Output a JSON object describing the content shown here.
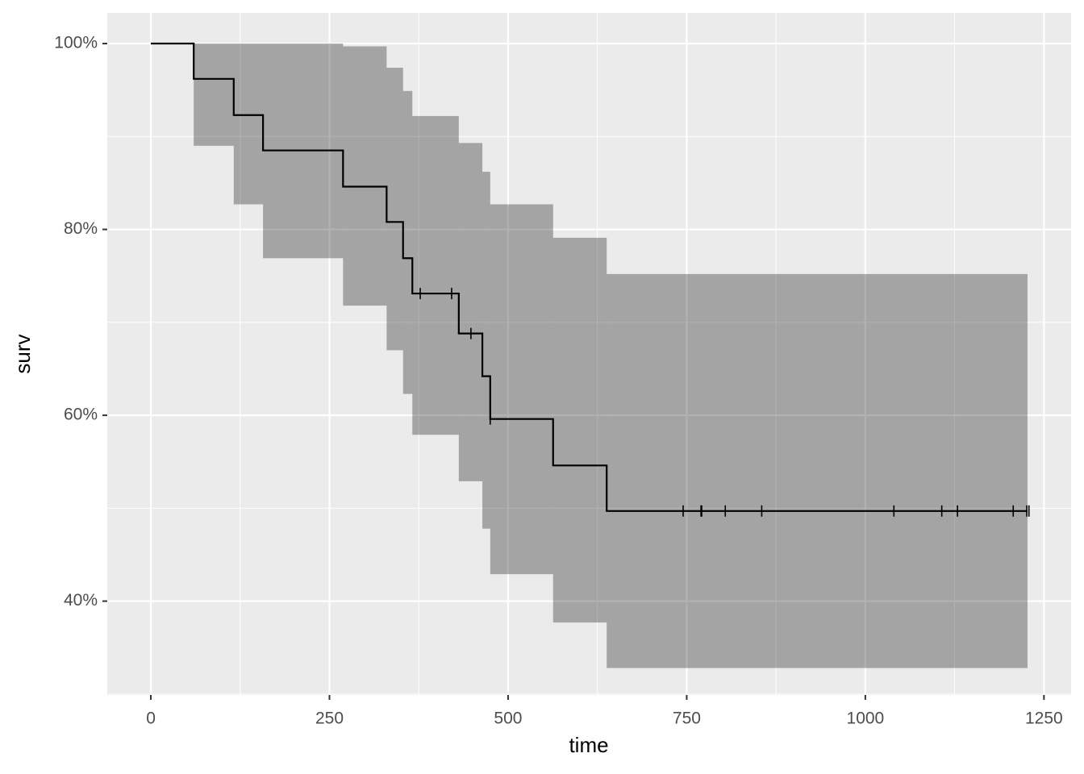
{
  "chart_data": {
    "type": "step",
    "x_label": "time",
    "y_label": "surv",
    "xlim": [
      -61,
      1288
    ],
    "ylim": [
      29.9,
      103.3
    ],
    "xticks": [
      0,
      250,
      500,
      750,
      1000,
      1250
    ],
    "yticks": [
      {
        "value": 40,
        "label": "40%"
      },
      {
        "value": 60,
        "label": "60%"
      },
      {
        "value": 80,
        "label": "80%"
      },
      {
        "value": 100,
        "label": "100%"
      }
    ],
    "grid": true,
    "panel_color": "#ebebeb",
    "series": [
      {
        "color": "#000000",
        "band_color": "#000000",
        "x": [
          0,
          60,
          116,
          157,
          269,
          330,
          353,
          366,
          431,
          464,
          475,
          563,
          638,
          1227
        ],
        "values": [
          100,
          96.2,
          92.3,
          88.5,
          84.6,
          80.8,
          76.9,
          73.1,
          68.8,
          64.2,
          59.6,
          54.6,
          49.7,
          49.7
        ],
        "upper": [
          100,
          100,
          100,
          100,
          99.7,
          97.4,
          94.9,
          92.2,
          89.3,
          86.2,
          82.7,
          79.1,
          75.2,
          75.2
        ],
        "lower": [
          100,
          89.0,
          82.7,
          76.9,
          71.8,
          67.0,
          62.3,
          57.9,
          52.9,
          47.8,
          42.9,
          37.7,
          32.8,
          32.8
        ]
      }
    ],
    "censor": {
      "x": [
        377,
        421,
        448,
        475,
        745,
        770,
        771,
        804,
        855,
        1040,
        1107,
        1129,
        1207,
        1226,
        1229
      ],
      "values": [
        73.1,
        73.1,
        68.8,
        59.6,
        49.7,
        49.7,
        49.7,
        49.7,
        49.7,
        49.7,
        49.7,
        49.7,
        49.7,
        49.7,
        49.7
      ]
    }
  }
}
